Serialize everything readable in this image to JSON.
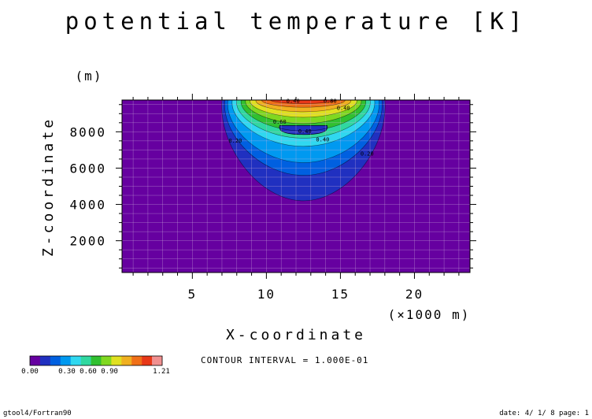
{
  "chart_data": {
    "type": "heatmap",
    "title": "potential temperature [K]",
    "xlabel": "X-coordinate",
    "ylabel": "Z-coordinate",
    "x_unit_label": "(×1000 m)",
    "y_unit_label": "(m)",
    "xlim": [
      0.25,
      23.75
    ],
    "ylim": [
      250,
      9750
    ],
    "x_ticks": [
      5,
      10,
      15,
      20
    ],
    "y_ticks": [
      2000,
      4000,
      6000,
      8000
    ],
    "x_tick_labels": [
      "5",
      "10",
      "15",
      "20"
    ],
    "y_tick_labels": [
      "2000",
      "4000",
      "6000",
      "8000"
    ],
    "contour_interval_text": "CONTOUR INTERVAL = 1.000E-01",
    "contour_interval": 0.1,
    "background_value": 0.0,
    "bubble": {
      "center_x": 12.5,
      "top_z": 9750,
      "levels": [
        {
          "value": 0.05,
          "half_width": 5.5,
          "bottom": 4200,
          "color": "#2030c0"
        },
        {
          "value": 0.15,
          "half_width": 5.3,
          "bottom": 5600,
          "color": "#0060e0"
        },
        {
          "value": 0.25,
          "half_width": 5.1,
          "bottom": 6300,
          "color": "#0099f0"
        },
        {
          "value": 0.35,
          "half_width": 4.8,
          "bottom": 7200,
          "color": "#30d8f0"
        },
        {
          "value": 0.45,
          "half_width": 4.5,
          "bottom": 7650,
          "color": "#30d8a0"
        },
        {
          "value": 0.55,
          "half_width": 4.2,
          "bottom": 8050,
          "color": "#30c030"
        },
        {
          "value": 0.65,
          "half_width": 3.9,
          "bottom": 8450,
          "color": "#80d820"
        },
        {
          "value": 0.75,
          "half_width": 3.6,
          "bottom": 8800,
          "color": "#e0e020"
        },
        {
          "value": 0.85,
          "half_width": 3.2,
          "bottom": 9100,
          "color": "#f0b020"
        },
        {
          "value": 0.95,
          "half_width": 2.8,
          "bottom": 9350,
          "color": "#f07018"
        },
        {
          "value": 1.05,
          "half_width": 2.2,
          "bottom": 9550,
          "color": "#e83818"
        }
      ],
      "inner_blue": {
        "half_width": 1.6,
        "bottom": 7850,
        "top": 8350,
        "color": "#2030c0"
      }
    },
    "contour_labels": [
      {
        "x": 11.8,
        "z": 9600,
        "text": "0.40"
      },
      {
        "x": 14.3,
        "z": 9600,
        "text": "0.80"
      },
      {
        "x": 10.9,
        "z": 8450,
        "text": "0.60"
      },
      {
        "x": 15.2,
        "z": 9200,
        "text": "0.40"
      },
      {
        "x": 12.6,
        "z": 7930,
        "text": "0.40"
      },
      {
        "x": 13.8,
        "z": 7470,
        "text": "0.40"
      },
      {
        "x": 7.9,
        "z": 7400,
        "text": "0.20"
      },
      {
        "x": 16.8,
        "z": 6700,
        "text": "0.20"
      }
    ],
    "colorbar": {
      "min_label": "0.00",
      "max_label": "1.21",
      "middle_labels_text": "0.30  0.60  0.90",
      "colors": [
        "#6600a0",
        "#2030c0",
        "#0060e0",
        "#0099f0",
        "#30d8f0",
        "#30d8a0",
        "#30c030",
        "#80d820",
        "#e0e020",
        "#f0b020",
        "#f07018",
        "#e83818",
        "#f09090"
      ]
    },
    "plot_colors": {
      "background": "#6600a0",
      "grid": "#cbb0dc",
      "frame": "#000000"
    }
  },
  "footer": {
    "left": "gtool4/Fortran90",
    "right": "date: 4/ 1/ 8 page: 1"
  }
}
